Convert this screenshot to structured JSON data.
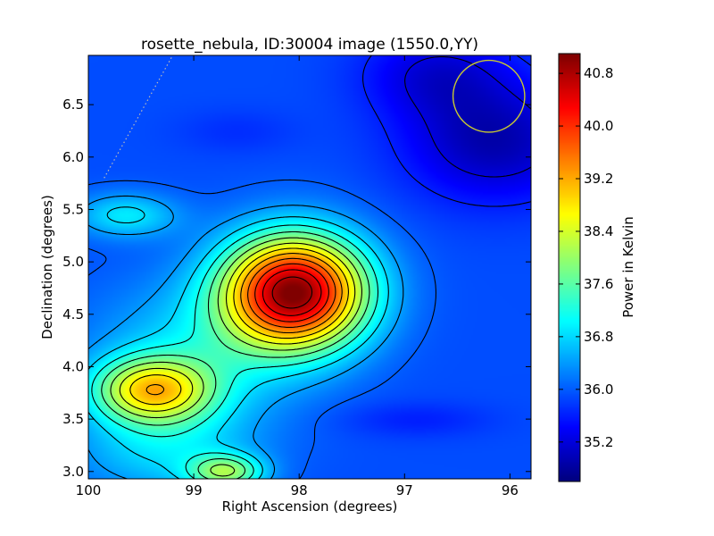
{
  "chart_data": {
    "type": "heatmap",
    "title": "rosette_nebula, ID:30004 image (1550.0,YY)",
    "xlabel": "Right Ascension (degrees)",
    "ylabel": "Declination (degrees)",
    "colorbar_label": "Power in Kelvin",
    "xlim": [
      100.0,
      95.8
    ],
    "ylim": [
      2.93,
      6.97
    ],
    "xticks": [
      100,
      99,
      98,
      97,
      96
    ],
    "xtick_labels": [
      "100",
      "99",
      "98",
      "97",
      "96"
    ],
    "yticks": [
      3.0,
      3.5,
      4.0,
      4.5,
      5.0,
      5.5,
      6.0,
      6.5
    ],
    "ytick_labels": [
      "3.0",
      "3.5",
      "4.0",
      "4.5",
      "5.0",
      "5.5",
      "6.0",
      "6.5"
    ],
    "colorbar_range": [
      34.6,
      41.1
    ],
    "colorbar_ticks": [
      35.2,
      36.0,
      36.8,
      37.6,
      38.4,
      39.2,
      40.0,
      40.8
    ],
    "colorbar_tick_labels": [
      "35.2",
      "36.0",
      "36.8",
      "37.6",
      "38.4",
      "39.2",
      "40.0",
      "40.8"
    ],
    "colormap": "jet",
    "background_level": 35.9,
    "features": [
      {
        "ra": 98.05,
        "dec": 4.72,
        "peak": 41.0,
        "sigma_ra": 0.48,
        "sigma_dec": 0.38
      },
      {
        "ra": 99.4,
        "dec": 3.78,
        "peak": 38.5,
        "sigma_ra": 0.4,
        "sigma_dec": 0.22
      },
      {
        "ra": 99.0,
        "dec": 4.1,
        "peak": 36.8,
        "sigma_ra": 0.7,
        "sigma_dec": 0.5
      },
      {
        "ra": 99.65,
        "dec": 5.45,
        "peak": 36.9,
        "sigma_ra": 0.35,
        "sigma_dec": 0.15
      },
      {
        "ra": 98.7,
        "dec": 3.0,
        "peak": 37.7,
        "sigma_ra": 0.25,
        "sigma_dec": 0.12
      },
      {
        "ra": 99.3,
        "dec": 3.2,
        "peak": 36.7,
        "sigma_ra": 0.6,
        "sigma_dec": 0.3
      },
      {
        "ra": 96.15,
        "dec": 6.15,
        "peak": 34.9,
        "sigma_ra": 0.6,
        "sigma_dec": 0.4
      },
      {
        "ra": 96.7,
        "dec": 6.8,
        "peak": 35.2,
        "sigma_ra": 0.5,
        "sigma_dec": 0.3
      },
      {
        "ra": 96.9,
        "dec": 3.5,
        "peak": 35.6,
        "sigma_ra": 0.5,
        "sigma_dec": 0.12
      },
      {
        "ra": 98.6,
        "dec": 6.25,
        "peak": 35.7,
        "sigma_ra": 0.4,
        "sigma_dec": 0.15
      }
    ],
    "contour_step": 0.4,
    "beam_marker": {
      "ra": 96.2,
      "dec": 6.58,
      "radius_deg": 0.34,
      "color": "#c8c832"
    },
    "dotted_line": {
      "ra": [
        99.85,
        99.2
      ],
      "dec": [
        5.8,
        6.97
      ],
      "color": "#bbbbbb"
    },
    "grid": false
  }
}
